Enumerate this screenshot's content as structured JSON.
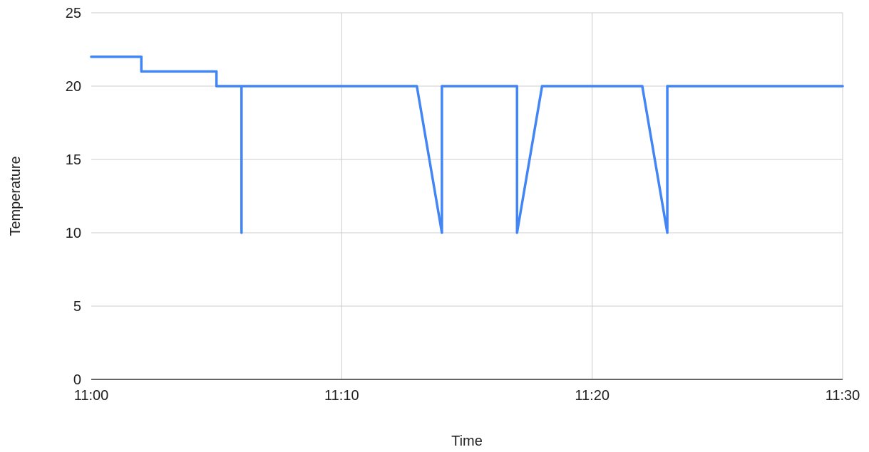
{
  "chart_data": {
    "type": "line",
    "title": "",
    "xlabel": "Time",
    "ylabel": "Temperature",
    "xlim": [
      "11:00",
      "11:30"
    ],
    "ylim": [
      0,
      25
    ],
    "x_ticks": [
      "11:00",
      "11:10",
      "11:20",
      "11:30"
    ],
    "y_ticks": [
      0,
      5,
      10,
      15,
      20,
      25
    ],
    "grid": true,
    "legend": "none",
    "series": [
      {
        "color": "#4285f4",
        "points": [
          {
            "x": "11:00",
            "y": 22
          },
          {
            "x": "11:02",
            "y": 22
          },
          {
            "x": "11:02",
            "y": 21
          },
          {
            "x": "11:05",
            "y": 21
          },
          {
            "x": "11:05",
            "y": 20
          },
          {
            "x": "11:06",
            "y": 20
          },
          {
            "x": "11:06",
            "y": 10
          },
          {
            "x": "11:06",
            "y": 20
          },
          {
            "x": "11:13",
            "y": 20
          },
          {
            "x": "11:14",
            "y": 10
          },
          {
            "x": "11:14",
            "y": 20
          },
          {
            "x": "11:17",
            "y": 20
          },
          {
            "x": "11:17",
            "y": 10
          },
          {
            "x": "11:18",
            "y": 20
          },
          {
            "x": "11:22",
            "y": 20
          },
          {
            "x": "11:23",
            "y": 10
          },
          {
            "x": "11:23",
            "y": 20
          },
          {
            "x": "11:30",
            "y": 20
          }
        ]
      }
    ]
  }
}
